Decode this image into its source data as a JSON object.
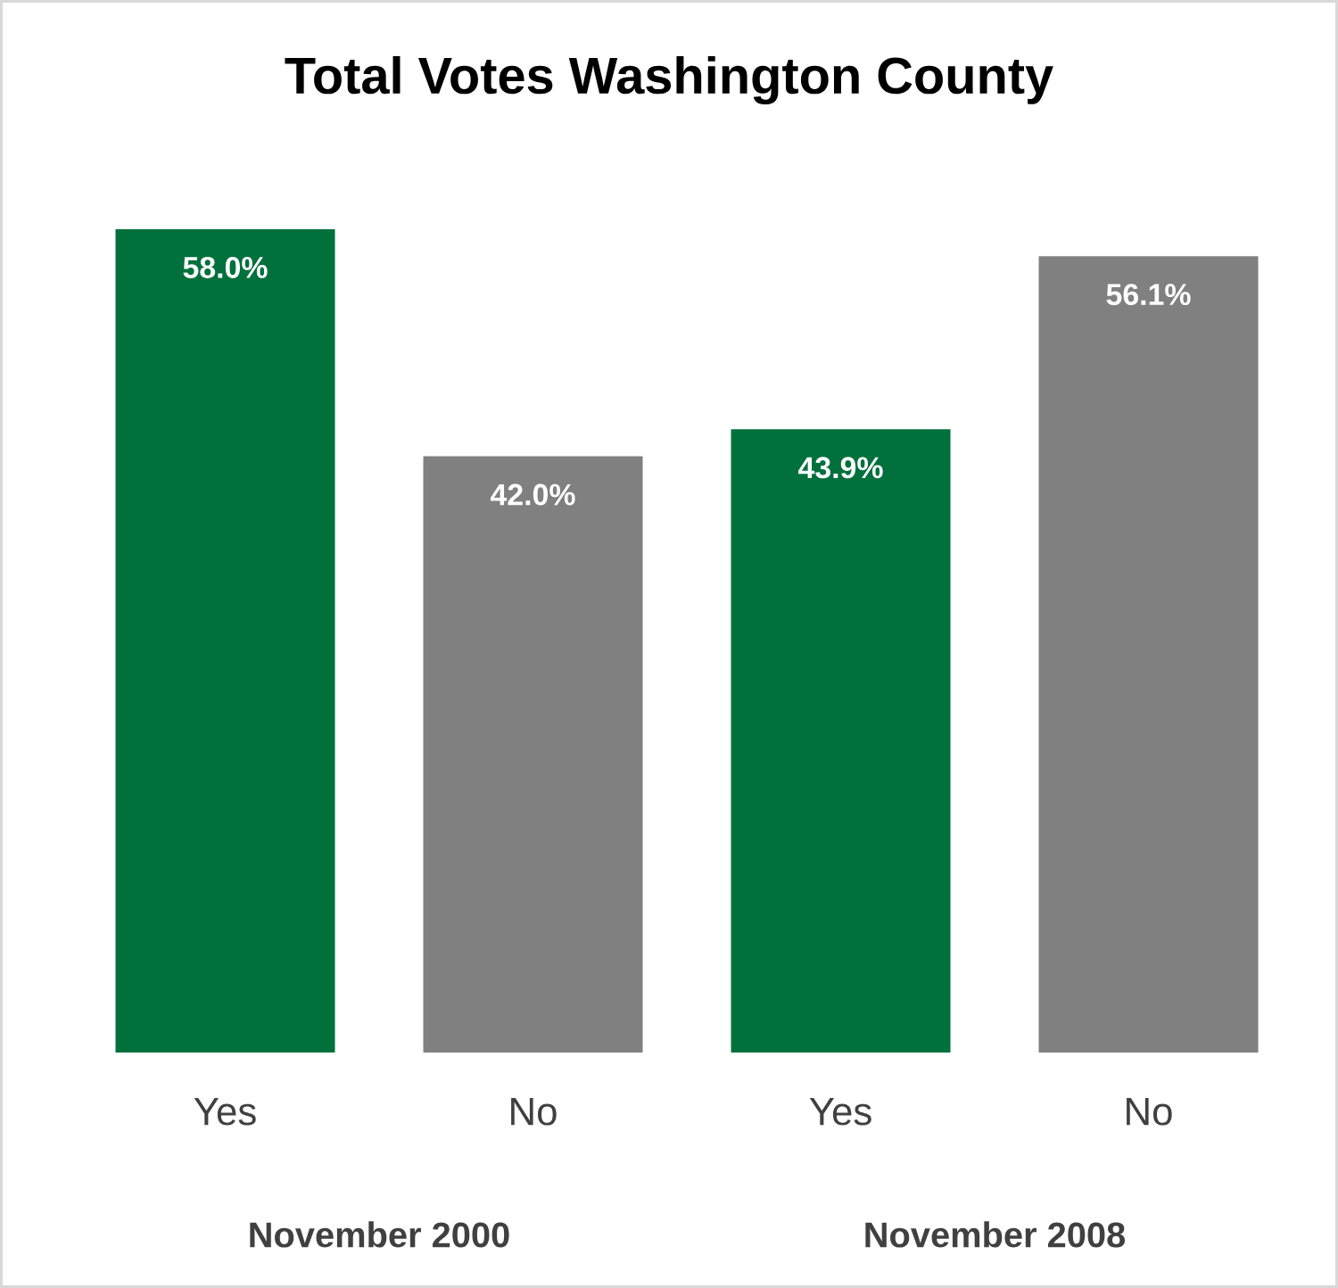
{
  "chart_data": {
    "type": "bar",
    "title": "Total Votes Washington County",
    "categories": [
      "Yes",
      "No",
      "Yes",
      "No"
    ],
    "values": [
      58.0,
      42.0,
      43.9,
      56.1
    ],
    "value_labels": [
      "58.0%",
      "42.0%",
      "43.9%",
      "56.1%"
    ],
    "colors": [
      "#00703c",
      "#808080",
      "#00703c",
      "#808080"
    ],
    "annotations": [
      "November 2000",
      "November 2008"
    ]
  }
}
